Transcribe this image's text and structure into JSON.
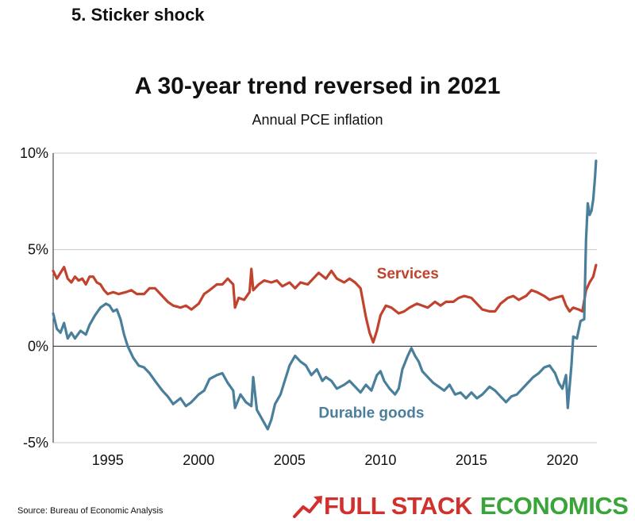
{
  "page": {
    "section_heading": "5. Sticker shock",
    "source": "Source: Bureau of Economic Analysis",
    "logo": {
      "text_primary": "FULL STACK",
      "text_secondary": "ECONOMICS",
      "primary_color": "#d2302c",
      "secondary_color": "#3aa33a",
      "icon": "rising-arrow-chart-icon"
    }
  },
  "chart_data": {
    "type": "line",
    "title": "A 30-year trend reversed in 2021",
    "subtitle": "Annual PCE inflation",
    "xlabel": "",
    "ylabel": "",
    "xlim": [
      1992,
      2021.9
    ],
    "ylim": [
      -5,
      10
    ],
    "x_ticks": [
      1995,
      2000,
      2005,
      2010,
      2015,
      2020
    ],
    "y_ticks": [
      {
        "value": 10,
        "label": "10%"
      },
      {
        "value": 5,
        "label": "5%"
      },
      {
        "value": 0,
        "label": "0%"
      },
      {
        "value": -5,
        "label": "-5%"
      }
    ],
    "grid": "horizontal",
    "series": [
      {
        "name": "Services",
        "color": "#c1432e",
        "points": [
          [
            1992.0,
            3.9
          ],
          [
            1992.2,
            3.5
          ],
          [
            1992.4,
            3.8
          ],
          [
            1992.6,
            4.1
          ],
          [
            1992.8,
            3.5
          ],
          [
            1993.0,
            3.3
          ],
          [
            1993.2,
            3.6
          ],
          [
            1993.4,
            3.4
          ],
          [
            1993.6,
            3.5
          ],
          [
            1993.8,
            3.2
          ],
          [
            1994.0,
            3.6
          ],
          [
            1994.2,
            3.6
          ],
          [
            1994.4,
            3.3
          ],
          [
            1994.6,
            3.2
          ],
          [
            1994.8,
            2.9
          ],
          [
            1995.0,
            2.7
          ],
          [
            1995.3,
            2.8
          ],
          [
            1995.6,
            2.7
          ],
          [
            1996.0,
            2.8
          ],
          [
            1996.3,
            2.9
          ],
          [
            1996.6,
            2.7
          ],
          [
            1997.0,
            2.7
          ],
          [
            1997.3,
            3.0
          ],
          [
            1997.6,
            3.0
          ],
          [
            1998.0,
            2.6
          ],
          [
            1998.3,
            2.3
          ],
          [
            1998.6,
            2.1
          ],
          [
            1999.0,
            2.0
          ],
          [
            1999.3,
            2.1
          ],
          [
            1999.6,
            1.9
          ],
          [
            2000.0,
            2.2
          ],
          [
            2000.3,
            2.7
          ],
          [
            2000.6,
            2.9
          ],
          [
            2001.0,
            3.2
          ],
          [
            2001.3,
            3.2
          ],
          [
            2001.6,
            3.5
          ],
          [
            2001.9,
            3.2
          ],
          [
            2002.0,
            2.0
          ],
          [
            2002.2,
            2.5
          ],
          [
            2002.5,
            2.4
          ],
          [
            2002.8,
            2.8
          ],
          [
            2002.9,
            4.0
          ],
          [
            2003.0,
            2.9
          ],
          [
            2003.3,
            3.2
          ],
          [
            2003.6,
            3.4
          ],
          [
            2004.0,
            3.3
          ],
          [
            2004.3,
            3.4
          ],
          [
            2004.6,
            3.1
          ],
          [
            2005.0,
            3.3
          ],
          [
            2005.3,
            3.0
          ],
          [
            2005.6,
            3.3
          ],
          [
            2006.0,
            3.2
          ],
          [
            2006.3,
            3.5
          ],
          [
            2006.6,
            3.8
          ],
          [
            2007.0,
            3.5
          ],
          [
            2007.3,
            3.9
          ],
          [
            2007.6,
            3.5
          ],
          [
            2008.0,
            3.3
          ],
          [
            2008.3,
            3.5
          ],
          [
            2008.6,
            3.3
          ],
          [
            2008.9,
            3.0
          ],
          [
            2009.0,
            2.5
          ],
          [
            2009.2,
            1.5
          ],
          [
            2009.4,
            0.7
          ],
          [
            2009.6,
            0.2
          ],
          [
            2009.8,
            0.8
          ],
          [
            2010.0,
            1.6
          ],
          [
            2010.3,
            2.1
          ],
          [
            2010.6,
            2.0
          ],
          [
            2011.0,
            1.7
          ],
          [
            2011.3,
            1.8
          ],
          [
            2011.6,
            2.0
          ],
          [
            2012.0,
            2.2
          ],
          [
            2012.3,
            2.1
          ],
          [
            2012.6,
            2.0
          ],
          [
            2013.0,
            2.3
          ],
          [
            2013.3,
            2.1
          ],
          [
            2013.6,
            2.3
          ],
          [
            2014.0,
            2.3
          ],
          [
            2014.3,
            2.5
          ],
          [
            2014.6,
            2.6
          ],
          [
            2015.0,
            2.5
          ],
          [
            2015.3,
            2.2
          ],
          [
            2015.6,
            1.9
          ],
          [
            2016.0,
            1.8
          ],
          [
            2016.3,
            1.8
          ],
          [
            2016.6,
            2.2
          ],
          [
            2017.0,
            2.5
          ],
          [
            2017.3,
            2.6
          ],
          [
            2017.6,
            2.4
          ],
          [
            2018.0,
            2.6
          ],
          [
            2018.3,
            2.9
          ],
          [
            2018.6,
            2.8
          ],
          [
            2019.0,
            2.6
          ],
          [
            2019.3,
            2.4
          ],
          [
            2019.6,
            2.5
          ],
          [
            2020.0,
            2.6
          ],
          [
            2020.2,
            2.1
          ],
          [
            2020.4,
            1.8
          ],
          [
            2020.6,
            2.0
          ],
          [
            2020.9,
            1.9
          ],
          [
            2021.1,
            1.8
          ],
          [
            2021.3,
            2.9
          ],
          [
            2021.5,
            3.3
          ],
          [
            2021.7,
            3.6
          ],
          [
            2021.85,
            4.2
          ]
        ]
      },
      {
        "name": "Durable goods",
        "color": "#4a7f9c",
        "points": [
          [
            1992.0,
            1.7
          ],
          [
            1992.2,
            0.9
          ],
          [
            1992.4,
            0.7
          ],
          [
            1992.6,
            1.2
          ],
          [
            1992.8,
            0.4
          ],
          [
            1993.0,
            0.7
          ],
          [
            1993.2,
            0.4
          ],
          [
            1993.5,
            0.8
          ],
          [
            1993.8,
            0.6
          ],
          [
            1994.0,
            1.1
          ],
          [
            1994.3,
            1.6
          ],
          [
            1994.6,
            2.0
          ],
          [
            1994.9,
            2.2
          ],
          [
            1995.1,
            2.1
          ],
          [
            1995.3,
            1.8
          ],
          [
            1995.5,
            1.9
          ],
          [
            1995.7,
            1.4
          ],
          [
            1995.9,
            0.6
          ],
          [
            1996.1,
            0.0
          ],
          [
            1996.4,
            -0.6
          ],
          [
            1996.7,
            -1.0
          ],
          [
            1997.0,
            -1.1
          ],
          [
            1997.3,
            -1.4
          ],
          [
            1997.6,
            -1.8
          ],
          [
            1998.0,
            -2.3
          ],
          [
            1998.3,
            -2.6
          ],
          [
            1998.6,
            -3.0
          ],
          [
            1999.0,
            -2.7
          ],
          [
            1999.3,
            -3.1
          ],
          [
            1999.6,
            -2.9
          ],
          [
            2000.0,
            -2.5
          ],
          [
            2000.3,
            -2.3
          ],
          [
            2000.6,
            -1.7
          ],
          [
            2001.0,
            -1.5
          ],
          [
            2001.3,
            -1.4
          ],
          [
            2001.6,
            -1.9
          ],
          [
            2001.9,
            -2.3
          ],
          [
            2002.0,
            -3.2
          ],
          [
            2002.3,
            -2.5
          ],
          [
            2002.6,
            -2.9
          ],
          [
            2002.9,
            -3.1
          ],
          [
            2003.0,
            -1.6
          ],
          [
            2003.2,
            -3.3
          ],
          [
            2003.5,
            -3.8
          ],
          [
            2003.8,
            -4.3
          ],
          [
            2004.0,
            -3.8
          ],
          [
            2004.2,
            -3.0
          ],
          [
            2004.5,
            -2.5
          ],
          [
            2004.8,
            -1.6
          ],
          [
            2005.0,
            -1.0
          ],
          [
            2005.3,
            -0.5
          ],
          [
            2005.6,
            -0.8
          ],
          [
            2005.9,
            -1.0
          ],
          [
            2006.2,
            -1.5
          ],
          [
            2006.5,
            -1.2
          ],
          [
            2006.8,
            -1.8
          ],
          [
            2007.0,
            -1.6
          ],
          [
            2007.3,
            -1.8
          ],
          [
            2007.6,
            -2.2
          ],
          [
            2008.0,
            -2.0
          ],
          [
            2008.3,
            -1.8
          ],
          [
            2008.6,
            -2.1
          ],
          [
            2008.9,
            -2.4
          ],
          [
            2009.2,
            -2.0
          ],
          [
            2009.5,
            -2.3
          ],
          [
            2009.8,
            -1.5
          ],
          [
            2010.0,
            -1.3
          ],
          [
            2010.2,
            -1.8
          ],
          [
            2010.5,
            -2.2
          ],
          [
            2010.8,
            -2.5
          ],
          [
            2011.0,
            -2.2
          ],
          [
            2011.2,
            -1.2
          ],
          [
            2011.5,
            -0.5
          ],
          [
            2011.7,
            -0.1
          ],
          [
            2011.9,
            -0.5
          ],
          [
            2012.1,
            -0.8
          ],
          [
            2012.3,
            -1.3
          ],
          [
            2012.6,
            -1.6
          ],
          [
            2012.9,
            -1.9
          ],
          [
            2013.2,
            -2.1
          ],
          [
            2013.5,
            -2.3
          ],
          [
            2013.8,
            -2.0
          ],
          [
            2014.1,
            -2.5
          ],
          [
            2014.4,
            -2.4
          ],
          [
            2014.7,
            -2.7
          ],
          [
            2015.0,
            -2.4
          ],
          [
            2015.3,
            -2.7
          ],
          [
            2015.6,
            -2.5
          ],
          [
            2016.0,
            -2.1
          ],
          [
            2016.3,
            -2.3
          ],
          [
            2016.6,
            -2.6
          ],
          [
            2016.9,
            -2.9
          ],
          [
            2017.2,
            -2.6
          ],
          [
            2017.5,
            -2.5
          ],
          [
            2017.8,
            -2.2
          ],
          [
            2018.1,
            -1.9
          ],
          [
            2018.4,
            -1.6
          ],
          [
            2018.7,
            -1.4
          ],
          [
            2019.0,
            -1.1
          ],
          [
            2019.3,
            -1.0
          ],
          [
            2019.6,
            -1.4
          ],
          [
            2019.8,
            -1.9
          ],
          [
            2020.0,
            -2.2
          ],
          [
            2020.2,
            -1.5
          ],
          [
            2020.3,
            -3.2
          ],
          [
            2020.5,
            -1.0
          ],
          [
            2020.6,
            0.5
          ],
          [
            2020.8,
            0.4
          ],
          [
            2021.0,
            1.3
          ],
          [
            2021.2,
            1.4
          ],
          [
            2021.3,
            5.5
          ],
          [
            2021.4,
            7.4
          ],
          [
            2021.5,
            6.8
          ],
          [
            2021.6,
            7.0
          ],
          [
            2021.7,
            7.6
          ],
          [
            2021.8,
            8.8
          ],
          [
            2021.85,
            9.6
          ]
        ]
      }
    ],
    "annotations": [
      {
        "series": "Services",
        "text": "Services",
        "at": [
          2011.5,
          3.5
        ],
        "color": "#c1432e"
      },
      {
        "series": "Durable goods",
        "text": "Durable goods",
        "at": [
          2009.5,
          -3.7
        ],
        "color": "#4a7f9c"
      }
    ]
  }
}
